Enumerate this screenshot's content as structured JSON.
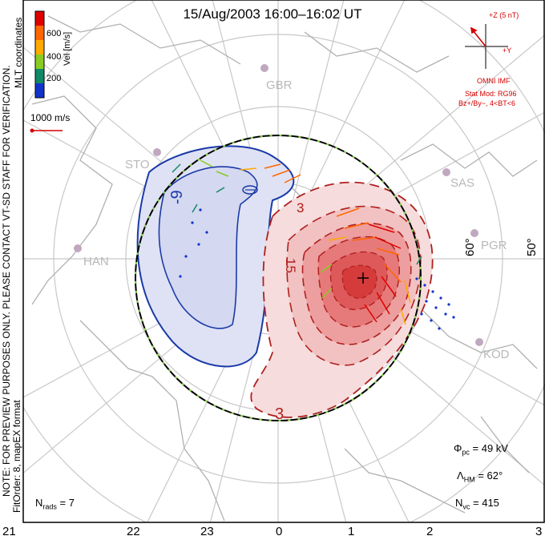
{
  "title": "15/Aug/2003 16:00–16:02 UT",
  "coordinates": "MLT coordinates",
  "colorbar": {
    "axis_label": "Vel [m/s]",
    "ticks": [
      "600",
      "400",
      "200"
    ],
    "colors": [
      "#e00000",
      "#ff6600",
      "#ffaa00",
      "#88cc22",
      "#118866",
      "#1133cc"
    ]
  },
  "velocity_scale": "1000 m/s",
  "notes": {
    "preview": "NOTE: FOR PREVIEW PURPOSES ONLY. PLEASE CONTACT VT-SD STAFF FOR VERIFICATION.",
    "fit": "FitOrder: 8, mapEX format"
  },
  "imf": {
    "z_label": "+Z (5 nT)",
    "y_label": "+Y",
    "model_title": "OMNI IMF",
    "model": "Stat Mod: RG96",
    "conditions": "Bz+/By−, 4<BT<6"
  },
  "stations": [
    "GBR",
    "STO",
    "SAS",
    "PGR",
    "HAN",
    "KOD"
  ],
  "latitude_labels": [
    "60°",
    "50°"
  ],
  "contour_labels": [
    "-9",
    "3",
    "15",
    "3"
  ],
  "mlt_labels": [
    "21",
    "22",
    "23",
    "0",
    "1",
    "2",
    "3"
  ],
  "stats": {
    "pcp_symbol": "Φ",
    "pcp_sub": "pc",
    "pcp_value": "= 49 kV",
    "hm_symbol": "Λ",
    "hm_sub": "HM",
    "hm_value": "= 62°",
    "nvc_symbol": "N",
    "nvc_sub": "vc",
    "nvc_value": "= 415",
    "nrads_symbol": "N",
    "nrads_sub": "rads",
    "nrads_value": "= 7"
  },
  "colors": {
    "positive": "#cc2222",
    "negative": "#1133aa",
    "boundary": "#000000"
  }
}
